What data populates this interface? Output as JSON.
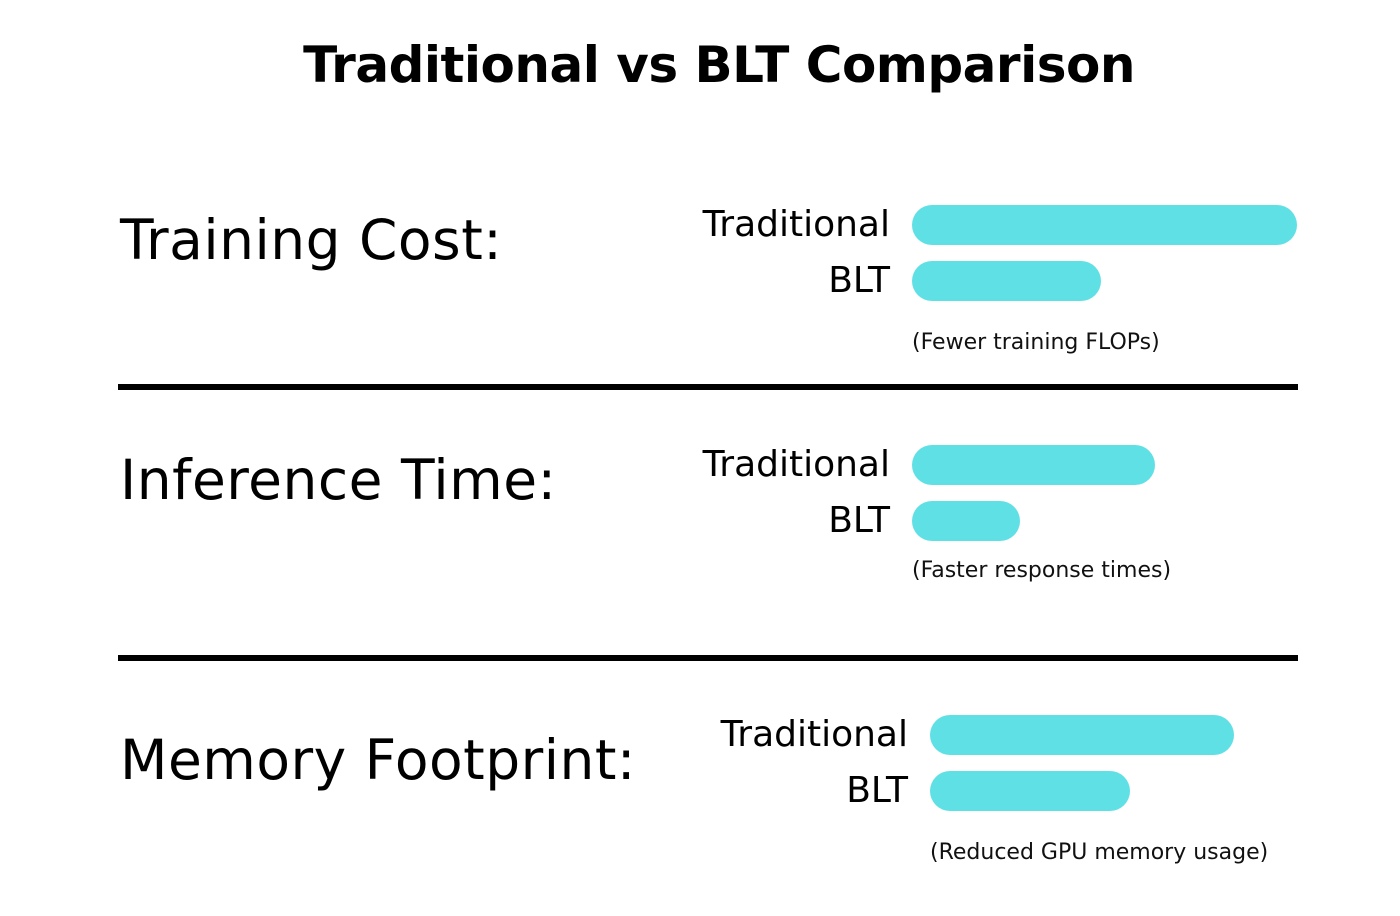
{
  "chart_data": {
    "type": "bar",
    "title": "Traditional vs BLT Comparison",
    "series_names": [
      "Traditional",
      "BLT"
    ],
    "bar_color": "#5fe0e5",
    "value_scale_note": "relative bar lengths (Traditional Training Cost = 100)",
    "metrics": [
      {
        "label": "Training Cost:",
        "values": {
          "Traditional": 100,
          "BLT": 49
        },
        "note": "(Fewer training FLOPs)"
      },
      {
        "label": "Inference Time:",
        "values": {
          "Traditional": 63,
          "BLT": 28
        },
        "note": "(Faster response times)"
      },
      {
        "label": "Memory Footprint:",
        "values": {
          "Traditional": 79,
          "BLT": 52
        },
        "note": "(Reduced GPU memory usage)"
      }
    ]
  }
}
